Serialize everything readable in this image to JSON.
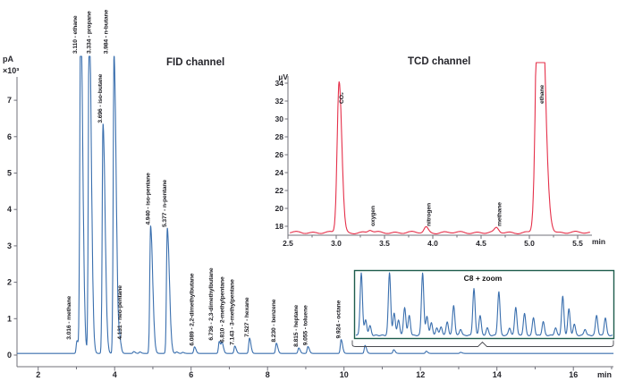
{
  "page": {
    "background": "#ffffff"
  },
  "chart_data": [
    {
      "id": "fid",
      "type": "line",
      "title": "FID channel",
      "title_color": "#2a6cb5",
      "line_color": "#3a6fae",
      "detector_unit": "pA",
      "unit_scale": "×10³",
      "time_unit": "min",
      "xlim": [
        1.45,
        17.05
      ],
      "ylim": [
        0,
        7.8
      ],
      "x_ticks": [
        2,
        4,
        6,
        8,
        10,
        12,
        14,
        16
      ],
      "y_ticks": [
        0,
        1,
        2,
        3,
        4,
        5,
        6,
        7
      ],
      "baseline": 0.045,
      "peaks": [
        {
          "rt": 3.016,
          "name": "methane",
          "label": "3.016 - methane",
          "height": 0.35
        },
        {
          "rt": 3.11,
          "name": "ethane",
          "label": "3.110 - ethane",
          "height": 9.5,
          "clipped": true
        },
        {
          "rt": 3.334,
          "name": "propane",
          "label": "3.334 - propane",
          "height": 9.5,
          "clipped": true
        },
        {
          "rt": 3.696,
          "name": "iso-butane",
          "label": "3.696 - iso-butane",
          "height": 6.3
        },
        {
          "rt": 3.984,
          "name": "n-butane",
          "label": "3.984 - n-butane",
          "height": 8.2
        },
        {
          "rt": 4.131,
          "name": "neo-pentane",
          "label": "4.131 - neo-pentane",
          "height": 0.35
        },
        {
          "rt": 4.5,
          "name": "",
          "label": "",
          "height": 0.05
        },
        {
          "rt": 4.66,
          "name": "",
          "label": "",
          "height": 0.04
        },
        {
          "rt": 4.94,
          "name": "iso-pentane",
          "label": "4.940 - iso-pentane",
          "height": 3.5
        },
        {
          "rt": 5.377,
          "name": "n-pentane",
          "label": "5.377 - n-pentane",
          "height": 3.44
        },
        {
          "rt": 5.62,
          "name": "",
          "label": "",
          "height": 0.04
        },
        {
          "rt": 5.78,
          "name": "",
          "label": "",
          "height": 0.03
        },
        {
          "rt": 6.089,
          "name": "2,2-dimethylbutane",
          "label": "6.089 - 2,2-dimethylbutane",
          "height": 0.18
        },
        {
          "rt": 6.736,
          "name": "2,3-dimethylbutane",
          "label": "6.736 - 2,3-dimethylbutane",
          "height": 0.33
        },
        {
          "rt": 6.81,
          "name": "2-methylpentane",
          "label": "6.810 - 2-methylpentane",
          "height": 0.27
        },
        {
          "rt": 7.143,
          "name": "3-methylpentane",
          "label": "7.143 - 3-methylpentane",
          "height": 0.2
        },
        {
          "rt": 7.527,
          "name": "hexane",
          "label": "7.527 - hexane",
          "height": 0.42
        },
        {
          "rt": 8.23,
          "name": "benzene",
          "label": "8.230 - benzene",
          "height": 0.28
        },
        {
          "rt": 8.815,
          "name": "heptane",
          "label": "8.815 - heptane",
          "height": 0.15
        },
        {
          "rt": 9.055,
          "name": "toluene",
          "label": "9.055 - toluene",
          "height": 0.19
        },
        {
          "rt": 9.924,
          "name": "octane",
          "label": "9.924 - octane",
          "height": 0.38
        },
        {
          "rt": 10.55,
          "name": "",
          "label": "",
          "height": 0.22
        },
        {
          "rt": 11.3,
          "name": "",
          "label": "",
          "height": 0.1
        },
        {
          "rt": 12.15,
          "name": "",
          "label": "",
          "height": 0.06
        },
        {
          "rt": 13.05,
          "name": "",
          "label": "",
          "height": 0.03
        }
      ]
    },
    {
      "id": "tcd",
      "type": "line",
      "title": "TCD channel",
      "title_color": "#e11b3c",
      "line_color": "#e5304a",
      "ylabel": "µV",
      "xlabel": "min",
      "xlim": [
        2.52,
        5.65
      ],
      "ylim": [
        17,
        35
      ],
      "x_ticks": [
        "2.5",
        "3.0",
        "3.5",
        "4.0",
        "4.5",
        "5.0",
        "5.5"
      ],
      "y_ticks": [
        18,
        20,
        22,
        24,
        26,
        28,
        30,
        32,
        34
      ],
      "baseline_uV": 17.3,
      "peaks": [
        {
          "rt": 3.03,
          "name": "CO₂",
          "label": "CO₂",
          "height": 16.9
        },
        {
          "rt": 3.35,
          "name": "oxygen",
          "label": "oxygen",
          "height": 0.28
        },
        {
          "rt": 3.93,
          "name": "nitrogen",
          "label": "nitrogen",
          "height": 0.6
        },
        {
          "rt": 4.66,
          "name": "methane",
          "label": "methane",
          "height": 0.5
        },
        {
          "rt": 5.1,
          "name": "ethane",
          "label": "ethane",
          "height": 40,
          "clipped": true
        }
      ]
    },
    {
      "id": "c8-zoom",
      "type": "line",
      "title": "C8 + zoom",
      "line_color": "#3a6fae",
      "border_color": "#1d5c4c",
      "zoom_region_minutes": [
        10.25,
        17.0
      ],
      "peaks": [
        [
          0.021,
          1.0
        ],
        [
          0.038,
          0.25
        ],
        [
          0.055,
          0.15
        ],
        [
          0.131,
          1.0
        ],
        [
          0.149,
          0.35
        ],
        [
          0.166,
          0.25
        ],
        [
          0.19,
          0.45
        ],
        [
          0.208,
          0.32
        ],
        [
          0.26,
          1.0
        ],
        [
          0.277,
          0.3
        ],
        [
          0.294,
          0.2
        ],
        [
          0.315,
          0.12
        ],
        [
          0.332,
          0.14
        ],
        [
          0.356,
          0.22
        ],
        [
          0.381,
          0.48
        ],
        [
          0.408,
          0.1
        ],
        [
          0.46,
          0.75
        ],
        [
          0.484,
          0.32
        ],
        [
          0.512,
          0.12
        ],
        [
          0.557,
          0.7
        ],
        [
          0.599,
          0.12
        ],
        [
          0.623,
          0.45
        ],
        [
          0.657,
          0.35
        ],
        [
          0.692,
          0.28
        ],
        [
          0.73,
          0.22
        ],
        [
          0.778,
          0.12
        ],
        [
          0.806,
          0.62
        ],
        [
          0.83,
          0.42
        ],
        [
          0.851,
          0.18
        ],
        [
          0.893,
          0.1
        ],
        [
          0.938,
          0.32
        ],
        [
          0.972,
          0.28
        ]
      ]
    }
  ]
}
